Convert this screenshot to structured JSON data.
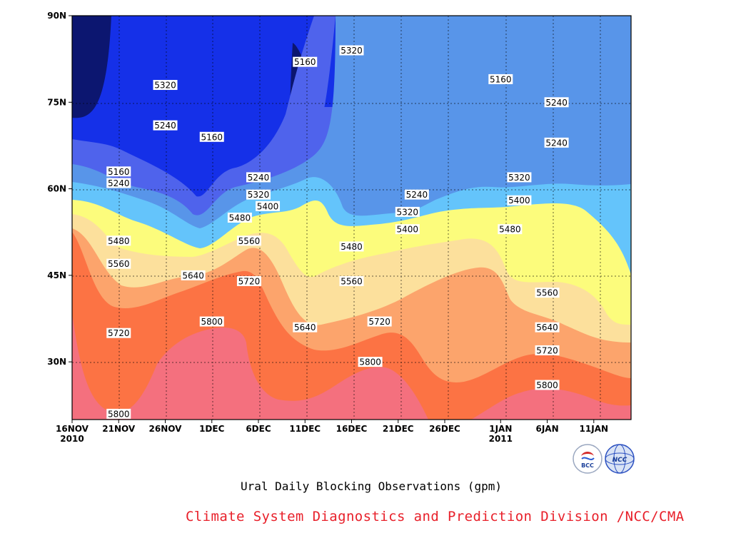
{
  "chart_data": {
    "type": "contour",
    "title": "Ural Daily Blocking Observations (gpm)",
    "x_tick_labels": [
      "16NOV",
      "21NOV",
      "26NOV",
      "1DEC",
      "6DEC",
      "11DEC",
      "16DEC",
      "21DEC",
      "26DEC",
      "1JAN",
      "6JAN",
      "11JAN"
    ],
    "x_year_labels": [
      {
        "text": "2010",
        "under": "16NOV"
      },
      {
        "text": "2011",
        "under": "1JAN"
      }
    ],
    "y_tick_labels": [
      "90N",
      "75N",
      "60N",
      "45N",
      "30N"
    ],
    "xlim": [
      "2010-11-16",
      "2011-01-15"
    ],
    "ylim_deg_lat": [
      20,
      90
    ],
    "levels": [
      5160,
      5240,
      5320,
      5400,
      5480,
      5560,
      5640,
      5720,
      5800
    ],
    "level_colors": [
      "#0c1670",
      "#1530e8",
      "#4f63ec",
      "#5895e9",
      "#64c4fb",
      "#fcfc7c",
      "#fce09c",
      "#fca46c",
      "#fc7344",
      "#f4707e"
    ],
    "contour_labels": [
      {
        "value": 5160,
        "date": "2010-11-21",
        "lat": 63
      },
      {
        "value": 5240,
        "date": "2010-11-21",
        "lat": 61
      },
      {
        "value": 5320,
        "date": "2010-11-26",
        "lat": 78
      },
      {
        "value": 5240,
        "date": "2010-11-26",
        "lat": 71
      },
      {
        "value": 5160,
        "date": "2010-12-01",
        "lat": 69
      },
      {
        "value": 5240,
        "date": "2010-12-06",
        "lat": 62
      },
      {
        "value": 5320,
        "date": "2010-12-06",
        "lat": 59
      },
      {
        "value": 5400,
        "date": "2010-12-07",
        "lat": 57
      },
      {
        "value": 5480,
        "date": "2010-12-04",
        "lat": 55
      },
      {
        "value": 5560,
        "date": "2010-12-05",
        "lat": 51
      },
      {
        "value": 5480,
        "date": "2010-11-21",
        "lat": 51
      },
      {
        "value": 5560,
        "date": "2010-11-21",
        "lat": 47
      },
      {
        "value": 5640,
        "date": "2010-11-29",
        "lat": 45
      },
      {
        "value": 5720,
        "date": "2010-12-05",
        "lat": 44
      },
      {
        "value": 5720,
        "date": "2010-11-21",
        "lat": 35
      },
      {
        "value": 5800,
        "date": "2010-12-01",
        "lat": 37
      },
      {
        "value": 5800,
        "date": "2010-11-21",
        "lat": 21
      },
      {
        "value": 5160,
        "date": "2010-12-11",
        "lat": 82
      },
      {
        "value": 5320,
        "date": "2010-12-16",
        "lat": 84
      },
      {
        "value": 5640,
        "date": "2010-12-11",
        "lat": 36
      },
      {
        "value": 5480,
        "date": "2010-12-16",
        "lat": 50
      },
      {
        "value": 5560,
        "date": "2010-12-16",
        "lat": 44
      },
      {
        "value": 5720,
        "date": "2010-12-19",
        "lat": 37
      },
      {
        "value": 5800,
        "date": "2010-12-18",
        "lat": 30
      },
      {
        "value": 5240,
        "date": "2010-12-23",
        "lat": 59
      },
      {
        "value": 5320,
        "date": "2010-12-22",
        "lat": 56
      },
      {
        "value": 5400,
        "date": "2010-12-22",
        "lat": 53
      },
      {
        "value": 5160,
        "date": "2011-01-01",
        "lat": 79
      },
      {
        "value": 5240,
        "date": "2011-01-07",
        "lat": 75
      },
      {
        "value": 5240,
        "date": "2011-01-07",
        "lat": 68
      },
      {
        "value": 5320,
        "date": "2011-01-03",
        "lat": 62
      },
      {
        "value": 5400,
        "date": "2011-01-03",
        "lat": 58
      },
      {
        "value": 5480,
        "date": "2011-01-02",
        "lat": 53
      },
      {
        "value": 5560,
        "date": "2011-01-06",
        "lat": 42
      },
      {
        "value": 5640,
        "date": "2011-01-06",
        "lat": 36
      },
      {
        "value": 5720,
        "date": "2011-01-06",
        "lat": 32
      },
      {
        "value": 5800,
        "date": "2011-01-06",
        "lat": 26
      }
    ],
    "grid": true
  },
  "footer": {
    "caption": "Ural Daily Blocking Observations (gpm)",
    "credit": "Climate System Diagnostics and Prediction Division /NCC/CMA"
  },
  "logos": {
    "bcc": "BCC",
    "ncc": "NCC"
  }
}
